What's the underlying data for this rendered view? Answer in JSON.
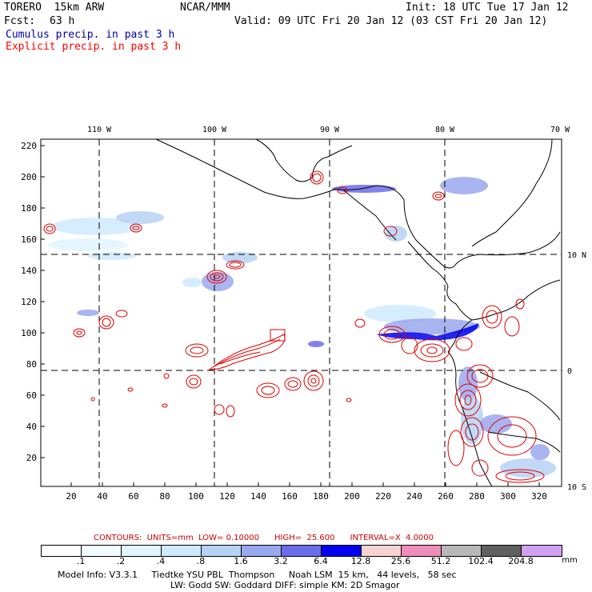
{
  "header": {
    "model": "TORERO  15km ARW",
    "org": "NCAR/MMM",
    "init": "Init: 18 UTC Tue 17 Jan 12",
    "fcst_label": "Fcst:",
    "fcst_value": "63 h",
    "valid": "Valid: 09 UTC Fri 20 Jan 12 (03 CST Fri 20 Jan 12)",
    "legend_cumulus": "Cumulus precip. in past 3 h",
    "legend_explicit": "Explicit precip. in past 3 h"
  },
  "colors": {
    "cumulus_text": "#0000aa",
    "explicit_text": "#ff0000",
    "contour": "#e00000",
    "coast": "#000000"
  },
  "map": {
    "lon_labels": [
      "110 W",
      "100 W",
      "90 W",
      "80 W",
      "70 W"
    ],
    "lat_labels": [
      "10 N",
      "0",
      "10 S"
    ],
    "y_ticks": [
      "220",
      "200",
      "180",
      "160",
      "140",
      "120",
      "100",
      "80",
      "60",
      "40",
      "20"
    ],
    "x_ticks": [
      "20",
      "40",
      "60",
      "80",
      "100",
      "120",
      "140",
      "160",
      "180",
      "200",
      "220",
      "240",
      "260",
      "280",
      "300",
      "320"
    ]
  },
  "footer": {
    "contours": "CONTOURS:  UNITS=mm  LOW= 0.10000      HIGH=  25.600      INTERVAL=X  4.0000",
    "colorbar_colors": [
      "#ffffff",
      "#f2fbff",
      "#e2f4ff",
      "#cfe9ff",
      "#b6d2f5",
      "#9aa8ee",
      "#6a6cea",
      "#0000ee",
      "#f7d2d2",
      "#f08cb8",
      "#b8b8b8",
      "#606060",
      "#d2a0f0"
    ],
    "colorbar_labels": [
      ".1",
      ".2",
      ".4",
      ".8",
      "1.6",
      "3.2",
      "6.4",
      "12.8",
      "25.6",
      "51.2",
      "102.4",
      "204.8"
    ],
    "colorbar_unit": "mm",
    "model_info_1": "Model Info: V3.3.1     Tiedtke YSU PBL  Thompson     Noah LSM  15 km,   44 levels,   58 sec",
    "model_info_2": "LW: Godd SW: Goddard DIFF: simple KM: 2D Smagor"
  }
}
